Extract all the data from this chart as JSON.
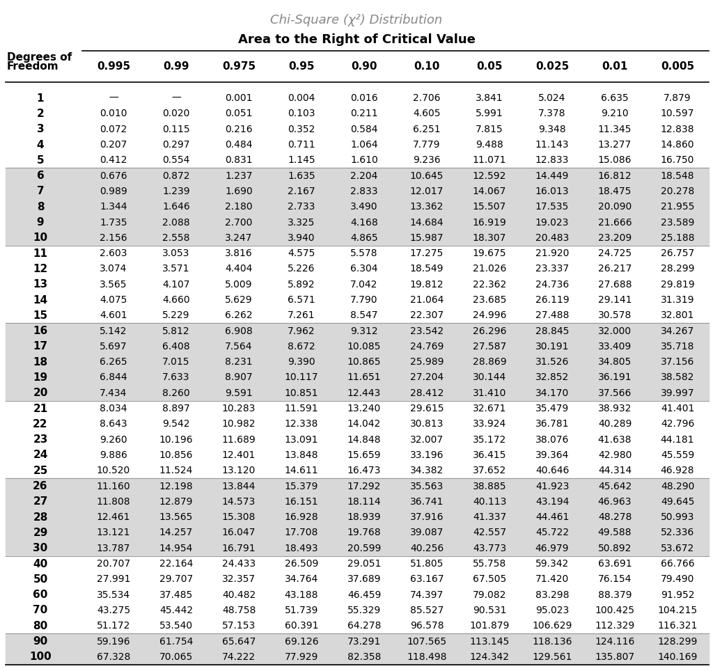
{
  "title_line1": "Chi-Square (χ²) Distribution",
  "title_line2": "Area to the Right of Critical Value",
  "columns": [
    "0.995",
    "0.99",
    "0.975",
    "0.95",
    "0.90",
    "0.10",
    "0.05",
    "0.025",
    "0.01",
    "0.005"
  ],
  "rows": [
    {
      "df": "1",
      "vals": [
        "—",
        "—",
        "0.001",
        "0.004",
        "0.016",
        "2.706",
        "3.841",
        "5.024",
        "6.635",
        "7.879"
      ]
    },
    {
      "df": "2",
      "vals": [
        "0.010",
        "0.020",
        "0.051",
        "0.103",
        "0.211",
        "4.605",
        "5.991",
        "7.378",
        "9.210",
        "10.597"
      ]
    },
    {
      "df": "3",
      "vals": [
        "0.072",
        "0.115",
        "0.216",
        "0.352",
        "0.584",
        "6.251",
        "7.815",
        "9.348",
        "11.345",
        "12.838"
      ]
    },
    {
      "df": "4",
      "vals": [
        "0.207",
        "0.297",
        "0.484",
        "0.711",
        "1.064",
        "7.779",
        "9.488",
        "11.143",
        "13.277",
        "14.860"
      ]
    },
    {
      "df": "5",
      "vals": [
        "0.412",
        "0.554",
        "0.831",
        "1.145",
        "1.610",
        "9.236",
        "11.071",
        "12.833",
        "15.086",
        "16.750"
      ]
    },
    {
      "df": "6",
      "vals": [
        "0.676",
        "0.872",
        "1.237",
        "1.635",
        "2.204",
        "10.645",
        "12.592",
        "14.449",
        "16.812",
        "18.548"
      ]
    },
    {
      "df": "7",
      "vals": [
        "0.989",
        "1.239",
        "1.690",
        "2.167",
        "2.833",
        "12.017",
        "14.067",
        "16.013",
        "18.475",
        "20.278"
      ]
    },
    {
      "df": "8",
      "vals": [
        "1.344",
        "1.646",
        "2.180",
        "2.733",
        "3.490",
        "13.362",
        "15.507",
        "17.535",
        "20.090",
        "21.955"
      ]
    },
    {
      "df": "9",
      "vals": [
        "1.735",
        "2.088",
        "2.700",
        "3.325",
        "4.168",
        "14.684",
        "16.919",
        "19.023",
        "21.666",
        "23.589"
      ]
    },
    {
      "df": "10",
      "vals": [
        "2.156",
        "2.558",
        "3.247",
        "3.940",
        "4.865",
        "15.987",
        "18.307",
        "20.483",
        "23.209",
        "25.188"
      ]
    },
    {
      "df": "11",
      "vals": [
        "2.603",
        "3.053",
        "3.816",
        "4.575",
        "5.578",
        "17.275",
        "19.675",
        "21.920",
        "24.725",
        "26.757"
      ]
    },
    {
      "df": "12",
      "vals": [
        "3.074",
        "3.571",
        "4.404",
        "5.226",
        "6.304",
        "18.549",
        "21.026",
        "23.337",
        "26.217",
        "28.299"
      ]
    },
    {
      "df": "13",
      "vals": [
        "3.565",
        "4.107",
        "5.009",
        "5.892",
        "7.042",
        "19.812",
        "22.362",
        "24.736",
        "27.688",
        "29.819"
      ]
    },
    {
      "df": "14",
      "vals": [
        "4.075",
        "4.660",
        "5.629",
        "6.571",
        "7.790",
        "21.064",
        "23.685",
        "26.119",
        "29.141",
        "31.319"
      ]
    },
    {
      "df": "15",
      "vals": [
        "4.601",
        "5.229",
        "6.262",
        "7.261",
        "8.547",
        "22.307",
        "24.996",
        "27.488",
        "30.578",
        "32.801"
      ]
    },
    {
      "df": "16",
      "vals": [
        "5.142",
        "5.812",
        "6.908",
        "7.962",
        "9.312",
        "23.542",
        "26.296",
        "28.845",
        "32.000",
        "34.267"
      ]
    },
    {
      "df": "17",
      "vals": [
        "5.697",
        "6.408",
        "7.564",
        "8.672",
        "10.085",
        "24.769",
        "27.587",
        "30.191",
        "33.409",
        "35.718"
      ]
    },
    {
      "df": "18",
      "vals": [
        "6.265",
        "7.015",
        "8.231",
        "9.390",
        "10.865",
        "25.989",
        "28.869",
        "31.526",
        "34.805",
        "37.156"
      ]
    },
    {
      "df": "19",
      "vals": [
        "6.844",
        "7.633",
        "8.907",
        "10.117",
        "11.651",
        "27.204",
        "30.144",
        "32.852",
        "36.191",
        "38.582"
      ]
    },
    {
      "df": "20",
      "vals": [
        "7.434",
        "8.260",
        "9.591",
        "10.851",
        "12.443",
        "28.412",
        "31.410",
        "34.170",
        "37.566",
        "39.997"
      ]
    },
    {
      "df": "21",
      "vals": [
        "8.034",
        "8.897",
        "10.283",
        "11.591",
        "13.240",
        "29.615",
        "32.671",
        "35.479",
        "38.932",
        "41.401"
      ]
    },
    {
      "df": "22",
      "vals": [
        "8.643",
        "9.542",
        "10.982",
        "12.338",
        "14.042",
        "30.813",
        "33.924",
        "36.781",
        "40.289",
        "42.796"
      ]
    },
    {
      "df": "23",
      "vals": [
        "9.260",
        "10.196",
        "11.689",
        "13.091",
        "14.848",
        "32.007",
        "35.172",
        "38.076",
        "41.638",
        "44.181"
      ]
    },
    {
      "df": "24",
      "vals": [
        "9.886",
        "10.856",
        "12.401",
        "13.848",
        "15.659",
        "33.196",
        "36.415",
        "39.364",
        "42.980",
        "45.559"
      ]
    },
    {
      "df": "25",
      "vals": [
        "10.520",
        "11.524",
        "13.120",
        "14.611",
        "16.473",
        "34.382",
        "37.652",
        "40.646",
        "44.314",
        "46.928"
      ]
    },
    {
      "df": "26",
      "vals": [
        "11.160",
        "12.198",
        "13.844",
        "15.379",
        "17.292",
        "35.563",
        "38.885",
        "41.923",
        "45.642",
        "48.290"
      ]
    },
    {
      "df": "27",
      "vals": [
        "11.808",
        "12.879",
        "14.573",
        "16.151",
        "18.114",
        "36.741",
        "40.113",
        "43.194",
        "46.963",
        "49.645"
      ]
    },
    {
      "df": "28",
      "vals": [
        "12.461",
        "13.565",
        "15.308",
        "16.928",
        "18.939",
        "37.916",
        "41.337",
        "44.461",
        "48.278",
        "50.993"
      ]
    },
    {
      "df": "29",
      "vals": [
        "13.121",
        "14.257",
        "16.047",
        "17.708",
        "19.768",
        "39.087",
        "42.557",
        "45.722",
        "49.588",
        "52.336"
      ]
    },
    {
      "df": "30",
      "vals": [
        "13.787",
        "14.954",
        "16.791",
        "18.493",
        "20.599",
        "40.256",
        "43.773",
        "46.979",
        "50.892",
        "53.672"
      ]
    },
    {
      "df": "40",
      "vals": [
        "20.707",
        "22.164",
        "24.433",
        "26.509",
        "29.051",
        "51.805",
        "55.758",
        "59.342",
        "63.691",
        "66.766"
      ]
    },
    {
      "df": "50",
      "vals": [
        "27.991",
        "29.707",
        "32.357",
        "34.764",
        "37.689",
        "63.167",
        "67.505",
        "71.420",
        "76.154",
        "79.490"
      ]
    },
    {
      "df": "60",
      "vals": [
        "35.534",
        "37.485",
        "40.482",
        "43.188",
        "46.459",
        "74.397",
        "79.082",
        "83.298",
        "88.379",
        "91.952"
      ]
    },
    {
      "df": "70",
      "vals": [
        "43.275",
        "45.442",
        "48.758",
        "51.739",
        "55.329",
        "85.527",
        "90.531",
        "95.023",
        "100.425",
        "104.215"
      ]
    },
    {
      "df": "80",
      "vals": [
        "51.172",
        "53.540",
        "57.153",
        "60.391",
        "64.278",
        "96.578",
        "101.879",
        "106.629",
        "112.329",
        "116.321"
      ]
    },
    {
      "df": "90",
      "vals": [
        "59.196",
        "61.754",
        "65.647",
        "69.126",
        "73.291",
        "107.565",
        "113.145",
        "118.136",
        "124.116",
        "128.299"
      ]
    },
    {
      "df": "100",
      "vals": [
        "67.328",
        "70.065",
        "74.222",
        "77.929",
        "82.358",
        "118.498",
        "124.342",
        "129.561",
        "135.807",
        "140.169"
      ]
    }
  ],
  "group_bands": [
    {
      "rows": [
        0,
        4
      ],
      "bg": "#ffffff"
    },
    {
      "rows": [
        5,
        9
      ],
      "bg": "#d8d8d8"
    },
    {
      "rows": [
        10,
        14
      ],
      "bg": "#ffffff"
    },
    {
      "rows": [
        15,
        19
      ],
      "bg": "#d8d8d8"
    },
    {
      "rows": [
        20,
        24
      ],
      "bg": "#ffffff"
    },
    {
      "rows": [
        25,
        29
      ],
      "bg": "#d8d8d8"
    },
    {
      "rows": [
        30,
        34
      ],
      "bg": "#ffffff"
    },
    {
      "rows": [
        35,
        36
      ],
      "bg": "#d8d8d8"
    }
  ],
  "group_sep_after": [
    4,
    9,
    14,
    19,
    24,
    29,
    34
  ],
  "bg_color": "#ffffff",
  "title_color": "#888888",
  "header_color": "#000000",
  "cell_text_color": "#000000",
  "title_fontsize": 13,
  "subtitle_fontsize": 13,
  "col_header_fontsize": 11,
  "data_fontsize": 10,
  "df_fontsize": 11
}
